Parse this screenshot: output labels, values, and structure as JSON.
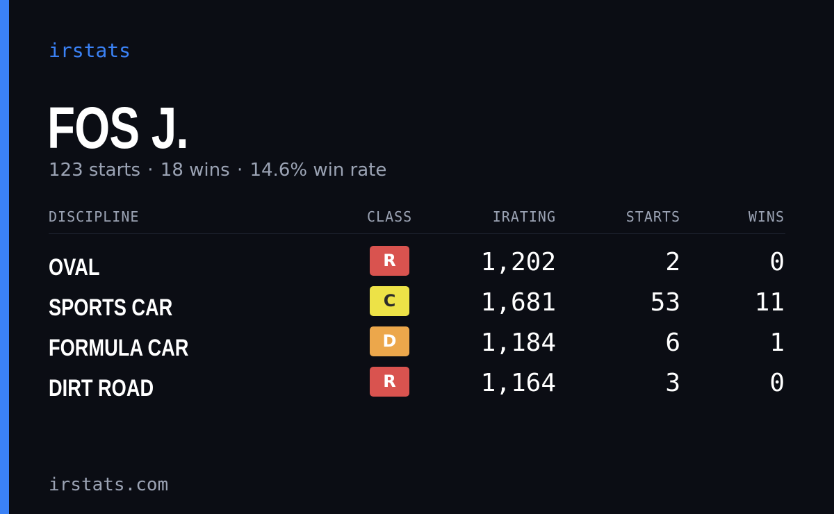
{
  "brand": "irstats",
  "player": {
    "name": "FOS J.",
    "starts": "123 starts",
    "wins": "18 wins",
    "win_rate": "14.6% win rate",
    "separator": "·"
  },
  "table": {
    "headers": {
      "discipline": "DISCIPLINE",
      "class": "CLASS",
      "irating": "IRATING",
      "starts": "STARTS",
      "wins": "WINS"
    },
    "rows": [
      {
        "discipline": "OVAL",
        "class": "R",
        "class_color": "#d9534f",
        "class_text_color": "#ffffff",
        "irating": "1,202",
        "starts": "2",
        "wins": "0"
      },
      {
        "discipline": "SPORTS CAR",
        "class": "C",
        "class_color": "#ede247",
        "class_text_color": "#2b2b2b",
        "irating": "1,681",
        "starts": "53",
        "wins": "11"
      },
      {
        "discipline": "FORMULA CAR",
        "class": "D",
        "class_color": "#eca74b",
        "class_text_color": "#ffffff",
        "irating": "1,184",
        "starts": "6",
        "wins": "1"
      },
      {
        "discipline": "DIRT ROAD",
        "class": "R",
        "class_color": "#d9534f",
        "class_text_color": "#ffffff",
        "irating": "1,164",
        "starts": "3",
        "wins": "0"
      }
    ]
  },
  "footer": "irstats.com",
  "colors": {
    "background": "#0b0d14",
    "accent": "#3b82f6",
    "muted_text": "#9ba3b4"
  }
}
